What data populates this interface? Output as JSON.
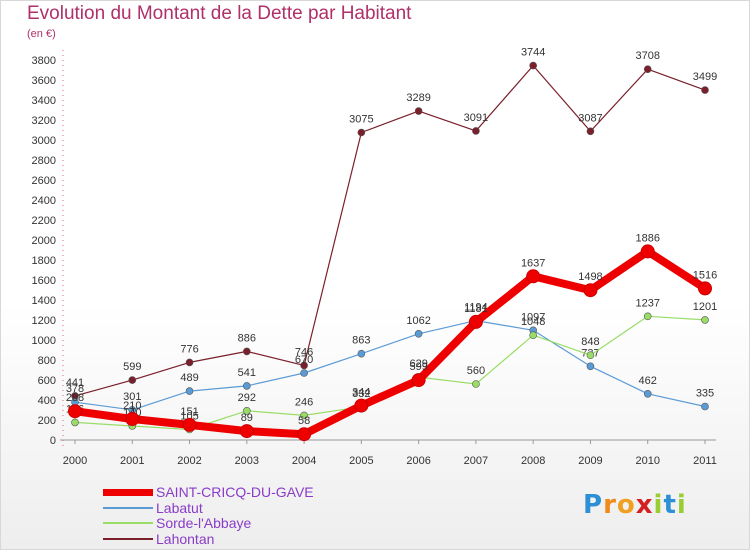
{
  "chart_data": {
    "type": "line",
    "title": "Evolution du Montant de la Dette par Habitant",
    "unit": "(en €)",
    "x": [
      "2000",
      "2001",
      "2002",
      "2003",
      "2004",
      "2005",
      "2006",
      "2007",
      "2008",
      "2009",
      "2010",
      "2011"
    ],
    "ylim": [
      0,
      3800
    ],
    "yticks": [
      0,
      200,
      400,
      600,
      800,
      1000,
      1200,
      1400,
      1600,
      1800,
      2000,
      2200,
      2400,
      2600,
      2800,
      3000,
      3200,
      3400,
      3600,
      3800
    ],
    "grid": false,
    "legend_position": "bottom-left",
    "series": [
      {
        "name": "Lahontan",
        "color": "#7a1f2b",
        "values": [
          441,
          599,
          776,
          886,
          746,
          3075,
          3289,
          3091,
          3744,
          3087,
          3708,
          3499
        ]
      },
      {
        "name": "Labatut",
        "color": "#5b9bd5",
        "values": [
          378,
          301,
          489,
          541,
          670,
          863,
          1062,
          1194,
          1097,
          737,
          462,
          335
        ]
      },
      {
        "name": "Sorde-l'Abbaye",
        "color": "#99dd66",
        "values": [
          176,
          140,
          105,
          292,
          246,
          332,
          629,
          560,
          1048,
          848,
          1237,
          1201
        ]
      },
      {
        "name": "SAINT-CRICQ-DU-GAVE",
        "color": "#ee0000",
        "values": [
          288,
          210,
          151,
          89,
          58,
          344,
          599,
          1181,
          1637,
          1498,
          1886,
          1516
        ]
      }
    ],
    "legend": [
      "SAINT-CRICQ-DU-GAVE",
      "Labatut",
      "Sorde-l'Abbaye",
      "Lahontan"
    ]
  },
  "logo": {
    "letters": [
      "P",
      "r",
      "o",
      "x",
      "i",
      "t",
      "i"
    ],
    "colors": [
      "#2d8fd4",
      "#f08a1a",
      "#f0a020",
      "#d42020",
      "#9acd32",
      "#2d8fd4",
      "#9acd32"
    ]
  }
}
